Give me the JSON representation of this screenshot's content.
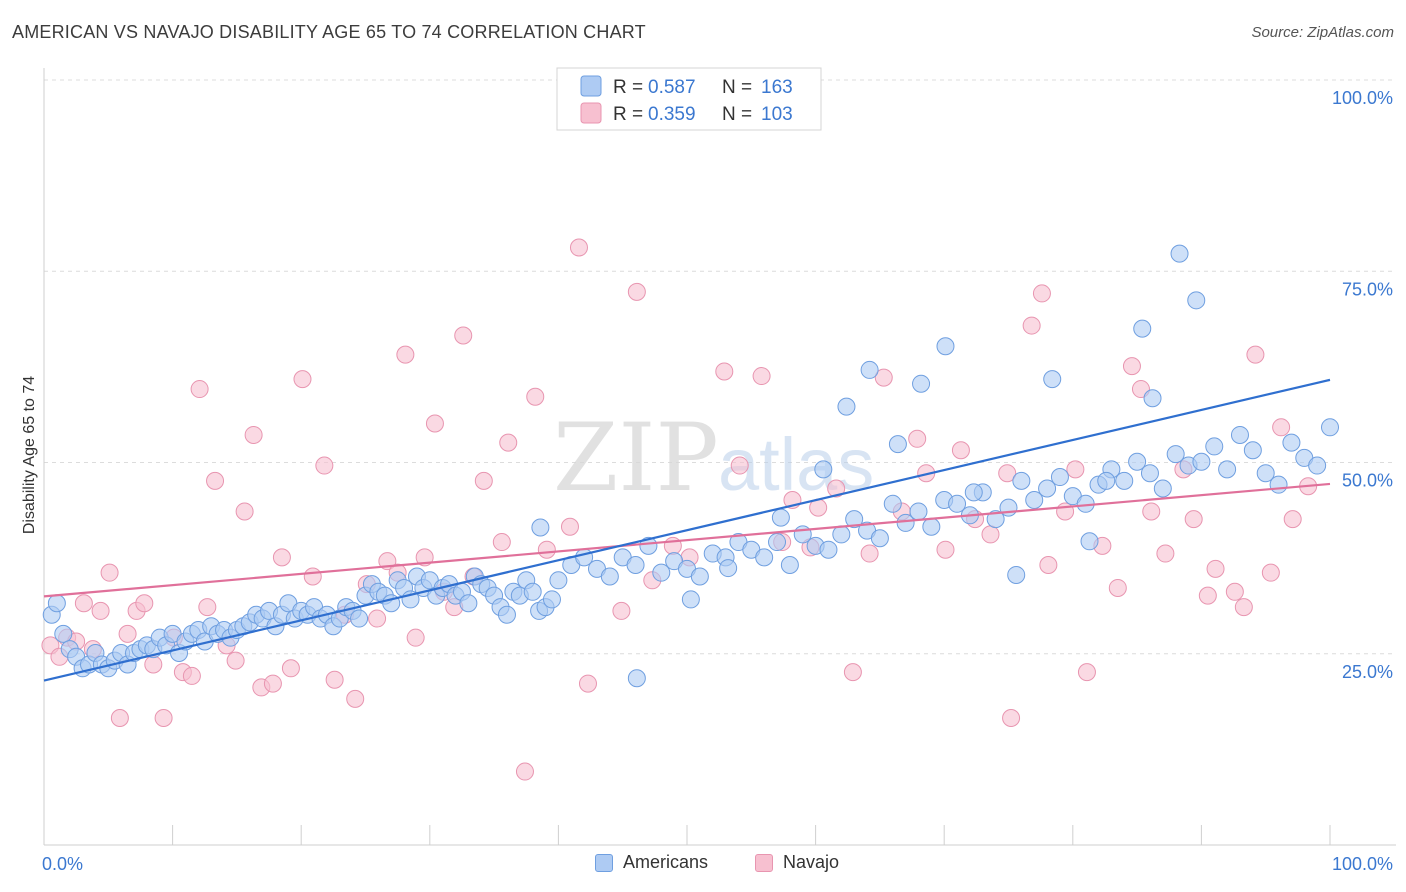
{
  "header": {
    "title": "AMERICAN VS NAVAJO DISABILITY AGE 65 TO 74 CORRELATION CHART",
    "source": "Source: ZipAtlas.com"
  },
  "watermark": {
    "zip": "ZIP",
    "atlas": "atlas"
  },
  "colors": {
    "americans_fill": "#aecbf3",
    "americans_stroke": "#6f9fe0",
    "americans_line": "#2f6fcf",
    "navajo_fill": "#f7c0d0",
    "navajo_stroke": "#e895b0",
    "navajo_line": "#e0709a",
    "axis_label": "#3b78d0",
    "grid": "#dcdcdc"
  },
  "legend": {
    "rows": [
      {
        "r_label": "R =",
        "r_value": "0.587",
        "n_label": "N =",
        "n_value": "163"
      },
      {
        "r_label": "R =",
        "r_value": "0.359",
        "n_label": "N =",
        "n_value": "103"
      }
    ]
  },
  "chart_data": {
    "type": "scatter",
    "title": "AMERICAN VS NAVAJO DISABILITY AGE 65 TO 74 CORRELATION CHART",
    "xlabel": "",
    "ylabel": "Disability Age 65 to 74",
    "xlim": [
      0,
      100
    ],
    "ylim": [
      0,
      100
    ],
    "x_tick_labels": [
      "0.0%",
      "100.0%"
    ],
    "y_tick_labels": [
      "25.0%",
      "50.0%",
      "75.0%",
      "100.0%"
    ],
    "y_ticks": [
      25,
      50,
      75,
      100
    ],
    "grid": true,
    "legend_position": "top-center",
    "series": [
      {
        "name": "Americans",
        "r": 0.587,
        "n": 163,
        "trend": {
          "x": [
            0,
            100
          ],
          "y": [
            21.5,
            60.8
          ]
        },
        "points": [
          [
            0.6,
            30.1
          ],
          [
            1,
            31.6
          ],
          [
            1.5,
            27.6
          ],
          [
            2,
            25.6
          ],
          [
            2.5,
            24.6
          ],
          [
            3,
            23.1
          ],
          [
            3.5,
            23.6
          ],
          [
            4,
            25.1
          ],
          [
            4.5,
            23.6
          ],
          [
            5,
            23.1
          ],
          [
            5.5,
            24.1
          ],
          [
            6,
            25.1
          ],
          [
            6.5,
            23.6
          ],
          [
            7,
            25.1
          ],
          [
            7.5,
            25.6
          ],
          [
            8,
            26.1
          ],
          [
            8.5,
            25.6
          ],
          [
            9,
            27.1
          ],
          [
            9.5,
            26.1
          ],
          [
            10,
            27.6
          ],
          [
            10.5,
            25.1
          ],
          [
            11,
            26.6
          ],
          [
            11.5,
            27.6
          ],
          [
            12,
            28.1
          ],
          [
            12.5,
            26.6
          ],
          [
            13,
            28.6
          ],
          [
            13.5,
            27.6
          ],
          [
            14,
            28.1
          ],
          [
            14.5,
            27.1
          ],
          [
            15,
            28.1
          ],
          [
            15.5,
            28.6
          ],
          [
            16,
            29.1
          ],
          [
            16.5,
            30.1
          ],
          [
            17,
            29.6
          ],
          [
            17.5,
            30.6
          ],
          [
            18,
            28.6
          ],
          [
            18.5,
            30.1
          ],
          [
            19,
            31.6
          ],
          [
            19.5,
            29.6
          ],
          [
            20,
            30.6
          ],
          [
            20.5,
            30.1
          ],
          [
            21,
            31.1
          ],
          [
            21.5,
            29.6
          ],
          [
            22,
            30.1
          ],
          [
            22.5,
            28.6
          ],
          [
            23,
            29.6
          ],
          [
            23.5,
            31.1
          ],
          [
            24,
            30.6
          ],
          [
            24.5,
            29.6
          ],
          [
            25,
            32.6
          ],
          [
            25.5,
            34.1
          ],
          [
            26,
            33.1
          ],
          [
            26.5,
            32.6
          ],
          [
            27,
            31.6
          ],
          [
            27.5,
            34.6
          ],
          [
            28,
            33.6
          ],
          [
            28.5,
            32.1
          ],
          [
            29,
            35.1
          ],
          [
            29.5,
            33.6
          ],
          [
            30,
            34.6
          ],
          [
            30.5,
            32.6
          ],
          [
            31,
            33.6
          ],
          [
            31.5,
            34.1
          ],
          [
            32,
            32.6
          ],
          [
            32.5,
            33.1
          ],
          [
            33,
            31.6
          ],
          [
            33.5,
            35.1
          ],
          [
            34,
            34.1
          ],
          [
            34.5,
            33.6
          ],
          [
            35,
            32.6
          ],
          [
            35.5,
            31.1
          ],
          [
            36,
            30.1
          ],
          [
            36.5,
            33.1
          ],
          [
            37,
            32.6
          ],
          [
            37.5,
            34.6
          ],
          [
            38,
            33.1
          ],
          [
            38.5,
            30.6
          ],
          [
            39,
            31.1
          ],
          [
            39.5,
            32.1
          ],
          [
            40,
            34.6
          ],
          [
            41,
            36.6
          ],
          [
            42,
            37.6
          ],
          [
            43,
            36.1
          ],
          [
            44,
            35.1
          ],
          [
            45,
            37.6
          ],
          [
            46,
            36.6
          ],
          [
            47,
            39.1
          ],
          [
            48,
            35.6
          ],
          [
            49,
            37.1
          ],
          [
            50,
            36.1
          ],
          [
            51,
            35.1
          ],
          [
            52,
            38.1
          ],
          [
            53,
            37.6
          ],
          [
            54,
            39.6
          ],
          [
            55,
            38.6
          ],
          [
            56,
            37.6
          ],
          [
            57,
            39.6
          ],
          [
            58,
            36.6
          ],
          [
            59,
            40.6
          ],
          [
            60,
            39.1
          ],
          [
            61,
            38.6
          ],
          [
            62,
            40.6
          ],
          [
            63,
            42.6
          ],
          [
            64,
            41.1
          ],
          [
            65,
            40.1
          ],
          [
            66,
            44.6
          ],
          [
            67,
            42.1
          ],
          [
            68,
            43.6
          ],
          [
            69,
            41.6
          ],
          [
            70,
            45.1
          ],
          [
            71,
            44.6
          ],
          [
            72,
            43.1
          ],
          [
            73,
            46.1
          ],
          [
            74,
            42.6
          ],
          [
            75,
            44.1
          ],
          [
            76,
            47.6
          ],
          [
            77,
            45.1
          ],
          [
            78,
            46.6
          ],
          [
            79,
            48.1
          ],
          [
            80,
            45.6
          ],
          [
            81,
            44.6
          ],
          [
            82,
            47.1
          ],
          [
            83,
            49.1
          ],
          [
            84,
            47.6
          ],
          [
            85,
            50.1
          ],
          [
            86,
            48.6
          ],
          [
            87,
            46.6
          ],
          [
            88,
            51.1
          ],
          [
            89,
            49.6
          ],
          [
            90,
            50.1
          ],
          [
            91,
            52.1
          ],
          [
            92,
            49.1
          ],
          [
            93,
            53.6
          ],
          [
            94,
            51.6
          ],
          [
            95,
            48.6
          ],
          [
            96,
            47.1
          ],
          [
            97,
            52.6
          ],
          [
            98,
            50.6
          ],
          [
            99,
            49.6
          ],
          [
            100,
            54.6
          ],
          [
            38.6,
            41.5
          ],
          [
            46.1,
            21.8
          ],
          [
            50.3,
            32.1
          ],
          [
            53.2,
            36.2
          ],
          [
            57.3,
            42.8
          ],
          [
            60.6,
            49.1
          ],
          [
            62.4,
            57.3
          ],
          [
            64.2,
            62.1
          ],
          [
            66.4,
            52.4
          ],
          [
            68.2,
            60.3
          ],
          [
            70.1,
            65.2
          ],
          [
            72.3,
            46.1
          ],
          [
            75.6,
            35.3
          ],
          [
            78.4,
            60.9
          ],
          [
            81.3,
            39.7
          ],
          [
            82.6,
            47.6
          ],
          [
            85.4,
            67.5
          ],
          [
            89.6,
            71.2
          ],
          [
            86.2,
            58.4
          ],
          [
            88.3,
            77.3
          ]
        ]
      },
      {
        "name": "Navajo",
        "r": 0.359,
        "n": 103,
        "trend": {
          "x": [
            0,
            100
          ],
          "y": [
            32.5,
            47.2
          ]
        },
        "points": [
          [
            0.5,
            26.1
          ],
          [
            1.2,
            24.6
          ],
          [
            1.8,
            27.1
          ],
          [
            2.5,
            26.6
          ],
          [
            3.1,
            31.6
          ],
          [
            3.8,
            25.6
          ],
          [
            4.4,
            30.6
          ],
          [
            5.1,
            35.6
          ],
          [
            5.9,
            16.6
          ],
          [
            6.5,
            27.6
          ],
          [
            7.2,
            30.6
          ],
          [
            7.8,
            31.6
          ],
          [
            8.5,
            23.6
          ],
          [
            9.3,
            16.6
          ],
          [
            10.1,
            27.1
          ],
          [
            10.8,
            22.6
          ],
          [
            11.5,
            22.1
          ],
          [
            12.1,
            59.6
          ],
          [
            12.7,
            31.1
          ],
          [
            13.3,
            47.6
          ],
          [
            14.2,
            26.1
          ],
          [
            14.9,
            24.1
          ],
          [
            15.6,
            43.6
          ],
          [
            16.3,
            53.6
          ],
          [
            16.9,
            20.6
          ],
          [
            17.8,
            21.1
          ],
          [
            18.5,
            37.6
          ],
          [
            19.2,
            23.1
          ],
          [
            20.1,
            60.9
          ],
          [
            20.9,
            35.1
          ],
          [
            21.8,
            49.6
          ],
          [
            22.6,
            21.6
          ],
          [
            23.4,
            30.1
          ],
          [
            24.2,
            19.1
          ],
          [
            25.1,
            34.1
          ],
          [
            25.9,
            29.6
          ],
          [
            26.7,
            37.1
          ],
          [
            27.5,
            35.6
          ],
          [
            28.1,
            64.1
          ],
          [
            28.9,
            27.1
          ],
          [
            29.6,
            37.6
          ],
          [
            30.4,
            55.1
          ],
          [
            31.1,
            33.1
          ],
          [
            31.9,
            31.1
          ],
          [
            32.6,
            66.6
          ],
          [
            33.4,
            35.1
          ],
          [
            34.2,
            47.6
          ],
          [
            35.6,
            39.6
          ],
          [
            36.1,
            52.6
          ],
          [
            37.4,
            9.6
          ],
          [
            38.2,
            58.6
          ],
          [
            39.1,
            38.6
          ],
          [
            40.9,
            41.6
          ],
          [
            41.6,
            78.1
          ],
          [
            42.3,
            21.1
          ],
          [
            44.9,
            30.6
          ],
          [
            46.1,
            72.3
          ],
          [
            47.3,
            34.6
          ],
          [
            48.9,
            39.1
          ],
          [
            50.2,
            37.6
          ],
          [
            52.9,
            61.9
          ],
          [
            54.1,
            49.6
          ],
          [
            55.8,
            61.3
          ],
          [
            57.4,
            39.6
          ],
          [
            58.2,
            45.1
          ],
          [
            59.6,
            38.9
          ],
          [
            60.2,
            44.1
          ],
          [
            61.6,
            46.6
          ],
          [
            62.9,
            22.6
          ],
          [
            64.2,
            38.1
          ],
          [
            65.3,
            61.1
          ],
          [
            66.7,
            43.6
          ],
          [
            67.9,
            53.1
          ],
          [
            68.6,
            48.6
          ],
          [
            70.1,
            38.6
          ],
          [
            71.3,
            51.6
          ],
          [
            72.4,
            42.6
          ],
          [
            73.6,
            40.6
          ],
          [
            74.9,
            48.6
          ],
          [
            75.2,
            16.6
          ],
          [
            76.8,
            67.9
          ],
          [
            77.6,
            72.1
          ],
          [
            78.1,
            36.6
          ],
          [
            79.4,
            43.6
          ],
          [
            80.2,
            49.1
          ],
          [
            81.1,
            22.6
          ],
          [
            82.3,
            39.1
          ],
          [
            83.5,
            33.6
          ],
          [
            84.6,
            62.6
          ],
          [
            85.3,
            59.6
          ],
          [
            86.1,
            43.6
          ],
          [
            87.2,
            38.1
          ],
          [
            88.6,
            49.1
          ],
          [
            89.4,
            42.6
          ],
          [
            90.5,
            32.6
          ],
          [
            91.1,
            36.1
          ],
          [
            92.6,
            33.1
          ],
          [
            93.3,
            31.1
          ],
          [
            94.2,
            64.1
          ],
          [
            95.4,
            35.6
          ],
          [
            96.2,
            54.6
          ],
          [
            97.1,
            42.6
          ],
          [
            98.3,
            46.9
          ]
        ]
      }
    ]
  },
  "bottom_legend": {
    "items": [
      {
        "label": "Americans"
      },
      {
        "label": "Navajo"
      }
    ]
  }
}
